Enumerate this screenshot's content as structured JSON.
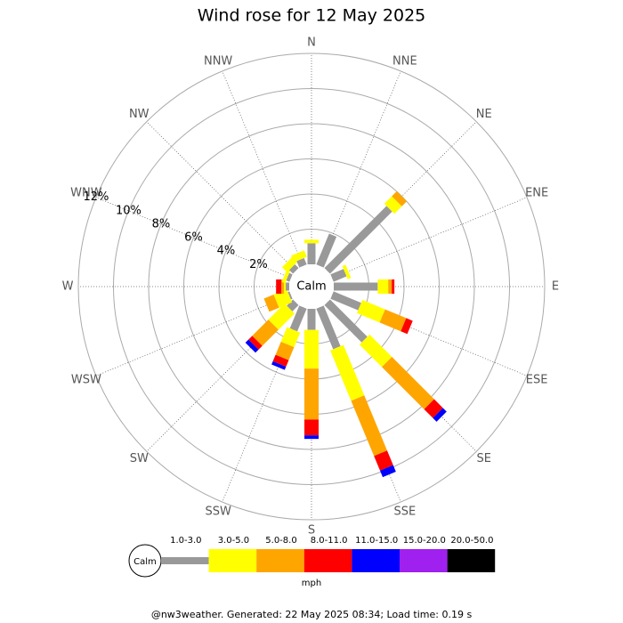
{
  "chart_data": {
    "type": "windrose",
    "title": "Wind rose for 12 May 2025",
    "directions": [
      "N",
      "NNE",
      "NE",
      "ENE",
      "E",
      "ESE",
      "SE",
      "SSE",
      "S",
      "SSW",
      "SW",
      "WSW",
      "W",
      "WNW",
      "NW",
      "NNW"
    ],
    "calm_label": "Calm",
    "rlim": [
      0,
      12
    ],
    "rticks": [
      {
        "value": 2,
        "label": "2%"
      },
      {
        "value": 4,
        "label": "4%"
      },
      {
        "value": 6,
        "label": "6%"
      },
      {
        "value": 8,
        "label": "8%"
      },
      {
        "value": 10,
        "label": "10%"
      },
      {
        "value": 12,
        "label": "12%"
      }
    ],
    "series": [
      {
        "name": "1.0-3.0",
        "color": "#999999",
        "values": [
          1.2,
          1.9,
          5.0,
          0.8,
          2.5,
          1.7,
          3.0,
          2.5,
          1.2,
          1.4,
          0.5,
          0.1,
          0.2,
          0.2,
          0.3,
          0.4
        ]
      },
      {
        "name": "3.0-5.0",
        "color": "#ffff00",
        "values": [
          0.2,
          0,
          0.6,
          0.2,
          0.6,
          1.4,
          1.8,
          3.1,
          2.2,
          0.9,
          1.3,
          0.8,
          0.1,
          0.2,
          0.4,
          0.4
        ]
      },
      {
        "name": "5.0-8.0",
        "color": "#ffa500",
        "values": [
          0,
          0,
          0.4,
          0,
          0.2,
          1.3,
          3.4,
          3.4,
          2.9,
          0.8,
          1.3,
          0.6,
          0.15,
          0,
          0,
          0
        ]
      },
      {
        "name": "8.0-11.0",
        "color": "#ff0000",
        "values": [
          0,
          0,
          0,
          0,
          0.15,
          0.4,
          0.7,
          0.9,
          0.9,
          0.4,
          0.3,
          0,
          0.3,
          0,
          0,
          0
        ]
      },
      {
        "name": "11.0-15.0",
        "color": "#0000ff",
        "values": [
          0,
          0,
          0,
          0,
          0,
          0,
          0.3,
          0.4,
          0.2,
          0.2,
          0.25,
          0,
          0,
          0,
          0,
          0
        ]
      },
      {
        "name": "15.0-20.0",
        "color": "#a020f0",
        "values": [
          0,
          0,
          0,
          0,
          0,
          0,
          0,
          0,
          0,
          0,
          0,
          0,
          0,
          0,
          0,
          0
        ]
      },
      {
        "name": "20.0-50.0",
        "color": "#000000",
        "values": [
          0,
          0,
          0,
          0,
          0,
          0,
          0,
          0,
          0,
          0,
          0,
          0,
          0,
          0,
          0,
          0
        ]
      }
    ],
    "legend_unit": "mph",
    "footer": "@nw3weather. Generated: 22 May 2025 08:34; Load time: 0.19 s"
  }
}
